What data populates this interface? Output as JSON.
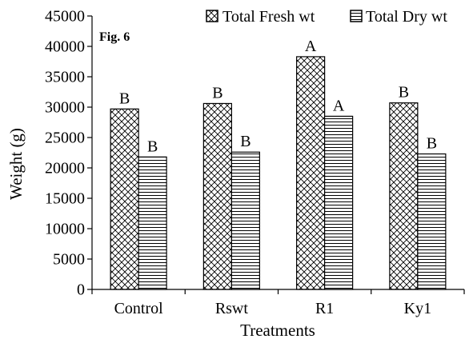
{
  "figure_label": "Fig. 6",
  "chart_data": {
    "type": "bar",
    "title": "",
    "xlabel": "Treatments",
    "ylabel": "Weight (g)",
    "categories": [
      "Control",
      "Rswt",
      "R1",
      "Ky1"
    ],
    "series": [
      {
        "name": "Total Fresh wt",
        "pattern": "crosshatch",
        "values": [
          29700,
          30600,
          38300,
          30700
        ],
        "labels": [
          "B",
          "B",
          "A",
          "B"
        ]
      },
      {
        "name": "Total Dry wt",
        "pattern": "horizontal-lines",
        "values": [
          21800,
          22600,
          28500,
          22300
        ],
        "labels": [
          "B",
          "B",
          "A",
          "B"
        ]
      }
    ],
    "ylim": [
      0,
      45000
    ],
    "yticks": [
      "0",
      "5000",
      "10000",
      "15000",
      "20000",
      "25000",
      "30000",
      "35000",
      "40000",
      "45000"
    ],
    "grid": false,
    "legend_position": "top-right"
  }
}
